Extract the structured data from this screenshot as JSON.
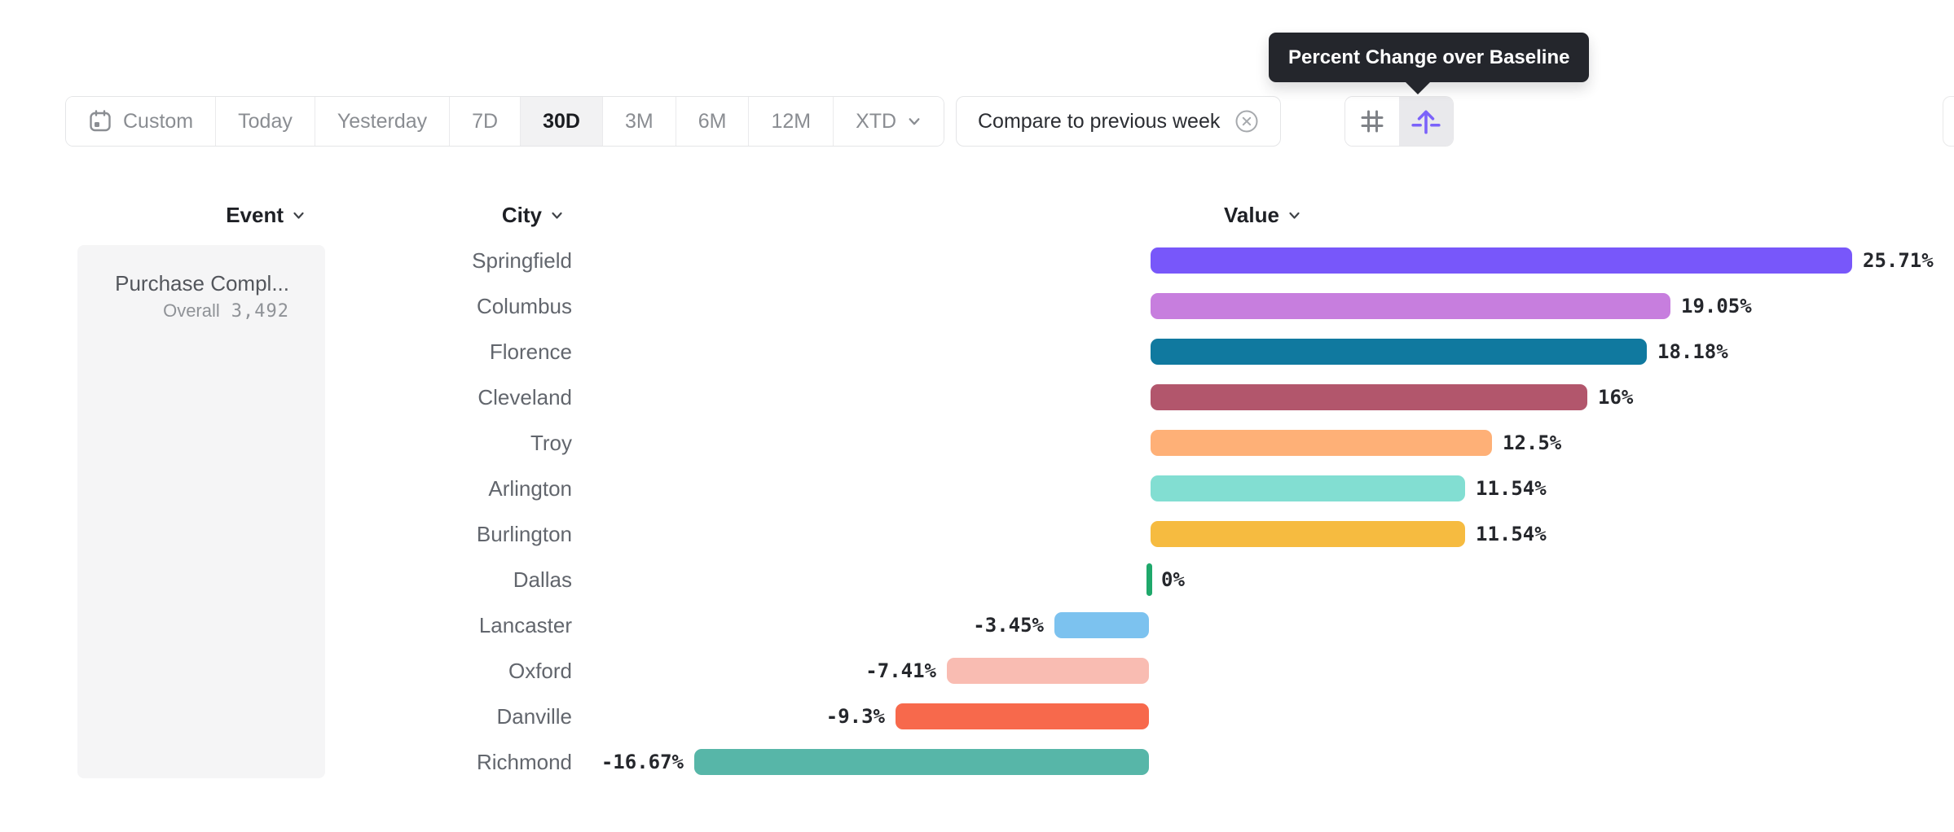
{
  "toolbar": {
    "items": [
      {
        "label": "Custom",
        "icon": "calendar-icon"
      },
      {
        "label": "Today"
      },
      {
        "label": "Yesterday"
      },
      {
        "label": "7D"
      },
      {
        "label": "30D",
        "selected": true
      },
      {
        "label": "3M"
      },
      {
        "label": "6M"
      },
      {
        "label": "12M"
      },
      {
        "label": "XTD",
        "icon": "chevron-down-icon"
      }
    ],
    "selected_range": "30D",
    "compare_label": "Compare to previous week",
    "view_toggle": {
      "options": [
        {
          "icon": "grid-icon",
          "selected": false
        },
        {
          "icon": "percent-change-icon",
          "selected": true
        }
      ]
    }
  },
  "tooltip": {
    "text": "Percent Change over Baseline"
  },
  "columns": {
    "event": "Event",
    "city": "City",
    "value": "Value"
  },
  "event_card": {
    "title": "Purchase Compl...",
    "overall_label": "Overall",
    "overall_value": "3,492"
  },
  "chart_data": {
    "type": "bar",
    "orientation": "horizontal",
    "title": "Percent Change over Baseline",
    "categories": [
      "Springfield",
      "Columbus",
      "Florence",
      "Cleveland",
      "Troy",
      "Arlington",
      "Burlington",
      "Dallas",
      "Lancaster",
      "Oxford",
      "Danville",
      "Richmond"
    ],
    "values": [
      25.71,
      19.05,
      18.18,
      16,
      12.5,
      11.54,
      11.54,
      0,
      -3.45,
      -7.41,
      -9.3,
      -16.67
    ],
    "value_labels": [
      "25.71%",
      "19.05%",
      "18.18%",
      "16%",
      "12.5%",
      "11.54%",
      "11.54%",
      "0%",
      "-3.45%",
      "-7.41%",
      "-9.3%",
      "-16.67%"
    ],
    "colors": [
      "#7857fa",
      "#c77ede",
      "#10799f",
      "#b2566c",
      "#feb077",
      "#82ded2",
      "#f6bb40",
      "#1fa86b",
      "#7cc2ef",
      "#f9bcb2",
      "#f7694c",
      "#57b6a8"
    ],
    "unit": "%",
    "xlim": [
      -16.67,
      25.71
    ],
    "grid": false,
    "legend": false,
    "zero_marker_color": "#1fa86b"
  },
  "theme": {
    "accent": "#7b62fa",
    "toolbar_active_bg": "#f2f2f3",
    "border": "#e4e5e7",
    "tooltip_bg": "#24262c"
  }
}
